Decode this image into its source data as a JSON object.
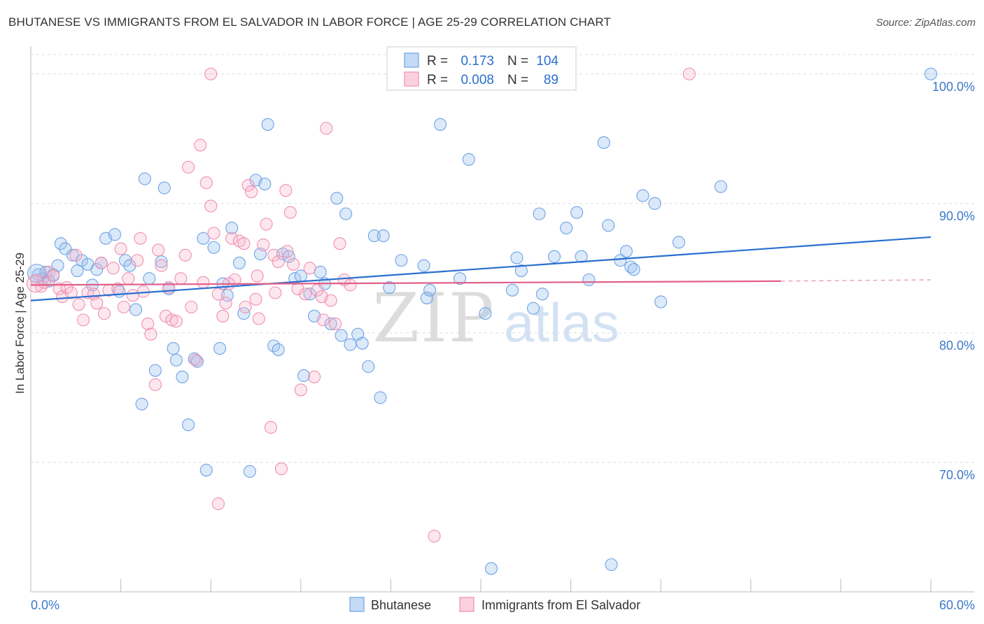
{
  "title": "BHUTANESE VS IMMIGRANTS FROM EL SALVADOR IN LABOR FORCE | AGE 25-29 CORRELATION CHART",
  "source": "Source: ZipAtlas.com",
  "watermark": {
    "zip": "ZIP",
    "atlas": "atlas"
  },
  "legend_box": {
    "rows": [
      {
        "r_label": "R =",
        "r_value": "0.173",
        "n_label": "N =",
        "n_value": "104"
      },
      {
        "r_label": "R =",
        "r_value": "0.008",
        "n_label": "N =",
        "n_value": "89"
      }
    ]
  },
  "chart_data": {
    "type": "scatter",
    "title": "BHUTANESE VS IMMIGRANTS FROM EL SALVADOR IN LABOR FORCE | AGE 25-29 CORRELATION CHART",
    "xlabel": "",
    "ylabel": "In Labor Force | Age 25-29",
    "xlim": [
      0,
      60
    ],
    "ylim": [
      60,
      101.5
    ],
    "x_tick_labels": [
      "0.0%",
      "60.0%"
    ],
    "y_ticks": [
      70,
      80,
      90,
      100
    ],
    "y_tick_labels": [
      "70.0%",
      "80.0%",
      "90.0%",
      "100.0%"
    ],
    "grid": true,
    "legend_position": "bottom-center",
    "series": [
      {
        "name": "Bhutanese",
        "color": "#6fa3e6",
        "line_color": "#2a6fd0",
        "r": 0.173,
        "n": 104,
        "trend": {
          "x": [
            0,
            60
          ],
          "y": [
            82.5,
            87.4
          ]
        },
        "points": [
          [
            0.5,
            84.5
          ],
          [
            0.8,
            84.2
          ],
          [
            1.0,
            84.7
          ],
          [
            1.2,
            84.0
          ],
          [
            1.5,
            84.5
          ],
          [
            1.8,
            85.2
          ],
          [
            2.0,
            86.9
          ],
          [
            2.3,
            86.5
          ],
          [
            2.8,
            86.0
          ],
          [
            3.1,
            84.8
          ],
          [
            3.4,
            85.6
          ],
          [
            3.8,
            85.3
          ],
          [
            4.1,
            83.7
          ],
          [
            4.4,
            84.9
          ],
          [
            4.7,
            85.4
          ],
          [
            5.0,
            87.3
          ],
          [
            5.6,
            87.6
          ],
          [
            5.9,
            83.2
          ],
          [
            6.3,
            85.6
          ],
          [
            6.6,
            85.2
          ],
          [
            7.0,
            81.8
          ],
          [
            7.4,
            74.5
          ],
          [
            7.6,
            91.9
          ],
          [
            7.9,
            84.2
          ],
          [
            8.3,
            77.1
          ],
          [
            8.7,
            85.5
          ],
          [
            8.9,
            91.2
          ],
          [
            9.2,
            83.4
          ],
          [
            9.5,
            78.8
          ],
          [
            9.7,
            77.9
          ],
          [
            10.1,
            76.6
          ],
          [
            10.5,
            72.9
          ],
          [
            10.9,
            78.0
          ],
          [
            11.1,
            77.8
          ],
          [
            11.5,
            87.3
          ],
          [
            11.7,
            69.4
          ],
          [
            12.2,
            86.6
          ],
          [
            12.6,
            78.8
          ],
          [
            12.8,
            83.8
          ],
          [
            13.1,
            82.9
          ],
          [
            13.4,
            88.1
          ],
          [
            13.9,
            85.4
          ],
          [
            14.2,
            81.5
          ],
          [
            14.6,
            69.3
          ],
          [
            15.0,
            91.8
          ],
          [
            15.3,
            86.1
          ],
          [
            15.6,
            91.5
          ],
          [
            15.8,
            96.1
          ],
          [
            16.2,
            79.0
          ],
          [
            16.5,
            78.7
          ],
          [
            16.8,
            86.1
          ],
          [
            17.2,
            85.9
          ],
          [
            17.6,
            84.2
          ],
          [
            18.0,
            84.4
          ],
          [
            18.2,
            76.7
          ],
          [
            18.6,
            83.0
          ],
          [
            18.9,
            81.3
          ],
          [
            19.3,
            84.7
          ],
          [
            19.6,
            83.8
          ],
          [
            20.0,
            80.7
          ],
          [
            20.4,
            90.4
          ],
          [
            20.7,
            79.8
          ],
          [
            21.0,
            89.2
          ],
          [
            21.3,
            79.1
          ],
          [
            21.8,
            79.9
          ],
          [
            22.1,
            79.2
          ],
          [
            22.5,
            77.4
          ],
          [
            22.9,
            87.5
          ],
          [
            23.3,
            75.0
          ],
          [
            23.5,
            87.5
          ],
          [
            23.9,
            83.5
          ],
          [
            24.7,
            85.6
          ],
          [
            26.2,
            85.2
          ],
          [
            26.4,
            82.7
          ],
          [
            26.6,
            83.3
          ],
          [
            27.3,
            96.1
          ],
          [
            28.6,
            84.2
          ],
          [
            29.2,
            93.4
          ],
          [
            30.3,
            81.5
          ],
          [
            30.7,
            61.8
          ],
          [
            32.1,
            83.3
          ],
          [
            32.4,
            85.8
          ],
          [
            32.7,
            84.8
          ],
          [
            33.5,
            81.9
          ],
          [
            33.9,
            89.2
          ],
          [
            34.1,
            83.0
          ],
          [
            34.9,
            85.9
          ],
          [
            35.7,
            88.1
          ],
          [
            36.4,
            89.3
          ],
          [
            36.7,
            85.9
          ],
          [
            37.2,
            84.1
          ],
          [
            38.2,
            94.7
          ],
          [
            38.5,
            88.3
          ],
          [
            38.7,
            62.1
          ],
          [
            39.3,
            85.6
          ],
          [
            39.7,
            86.3
          ],
          [
            40.0,
            85.1
          ],
          [
            40.2,
            84.9
          ],
          [
            40.8,
            90.6
          ],
          [
            41.6,
            90.0
          ],
          [
            42.0,
            82.4
          ],
          [
            43.2,
            87.0
          ],
          [
            46.0,
            91.3
          ],
          [
            60.0,
            100.0
          ]
        ]
      },
      {
        "name": "Immigrants from El Salvador",
        "color": "#f08fb0",
        "line_color": "#e0608a",
        "r": 0.008,
        "n": 89,
        "trend": {
          "x": [
            0,
            50
          ],
          "y": [
            83.7,
            84.0
          ]
        },
        "trend_dashed": {
          "x": [
            50,
            60
          ],
          "y": [
            84.0,
            84.1
          ]
        },
        "points": [
          [
            0.4,
            84.1
          ],
          [
            0.7,
            83.6
          ],
          [
            0.9,
            83.9
          ],
          [
            1.2,
            84.7
          ],
          [
            1.5,
            84.4
          ],
          [
            1.9,
            83.4
          ],
          [
            2.1,
            82.8
          ],
          [
            2.4,
            83.5
          ],
          [
            2.7,
            83.1
          ],
          [
            3.0,
            86.0
          ],
          [
            3.2,
            82.2
          ],
          [
            3.5,
            81.0
          ],
          [
            3.8,
            83.1
          ],
          [
            4.2,
            83.0
          ],
          [
            4.4,
            82.3
          ],
          [
            4.7,
            85.4
          ],
          [
            4.9,
            81.5
          ],
          [
            5.2,
            83.3
          ],
          [
            5.5,
            85.0
          ],
          [
            5.8,
            83.4
          ],
          [
            6.0,
            86.5
          ],
          [
            6.2,
            82.0
          ],
          [
            6.5,
            84.2
          ],
          [
            6.8,
            82.9
          ],
          [
            7.1,
            85.6
          ],
          [
            7.3,
            87.3
          ],
          [
            7.5,
            83.2
          ],
          [
            7.8,
            80.7
          ],
          [
            8.0,
            79.9
          ],
          [
            8.3,
            76.0
          ],
          [
            8.5,
            86.4
          ],
          [
            8.7,
            85.2
          ],
          [
            9.0,
            81.3
          ],
          [
            9.2,
            83.5
          ],
          [
            9.4,
            81.0
          ],
          [
            9.7,
            80.9
          ],
          [
            10.0,
            84.2
          ],
          [
            10.3,
            86.0
          ],
          [
            10.5,
            92.8
          ],
          [
            10.7,
            82.0
          ],
          [
            11.0,
            77.9
          ],
          [
            11.3,
            94.5
          ],
          [
            11.5,
            83.9
          ],
          [
            11.7,
            91.6
          ],
          [
            12.0,
            89.8
          ],
          [
            12.2,
            87.7
          ],
          [
            12.5,
            83.0
          ],
          [
            12.8,
            81.3
          ],
          [
            13.0,
            82.3
          ],
          [
            13.4,
            87.3
          ],
          [
            13.6,
            84.1
          ],
          [
            13.9,
            87.1
          ],
          [
            14.2,
            86.9
          ],
          [
            14.5,
            91.4
          ],
          [
            14.7,
            90.9
          ],
          [
            15.0,
            82.6
          ],
          [
            15.2,
            81.1
          ],
          [
            15.5,
            86.8
          ],
          [
            15.7,
            88.4
          ],
          [
            16.0,
            72.7
          ],
          [
            16.2,
            86.0
          ],
          [
            16.5,
            85.5
          ],
          [
            16.7,
            69.5
          ],
          [
            17.0,
            91.0
          ],
          [
            17.3,
            89.3
          ],
          [
            17.5,
            85.3
          ],
          [
            17.8,
            83.4
          ],
          [
            18.0,
            75.6
          ],
          [
            18.3,
            83.0
          ],
          [
            18.6,
            85.0
          ],
          [
            18.9,
            76.6
          ],
          [
            19.1,
            83.3
          ],
          [
            19.4,
            82.8
          ],
          [
            19.7,
            95.8
          ],
          [
            20.0,
            82.5
          ],
          [
            20.3,
            80.7
          ],
          [
            20.6,
            86.9
          ],
          [
            20.9,
            84.1
          ],
          [
            12.0,
            100.0
          ],
          [
            12.5,
            66.8
          ],
          [
            13.2,
            83.8
          ],
          [
            14.3,
            82.0
          ],
          [
            15.1,
            84.4
          ],
          [
            16.3,
            83.1
          ],
          [
            17.1,
            86.3
          ],
          [
            19.5,
            81.0
          ],
          [
            21.3,
            83.7
          ],
          [
            26.9,
            64.3
          ],
          [
            43.9,
            100.0
          ]
        ]
      }
    ]
  }
}
